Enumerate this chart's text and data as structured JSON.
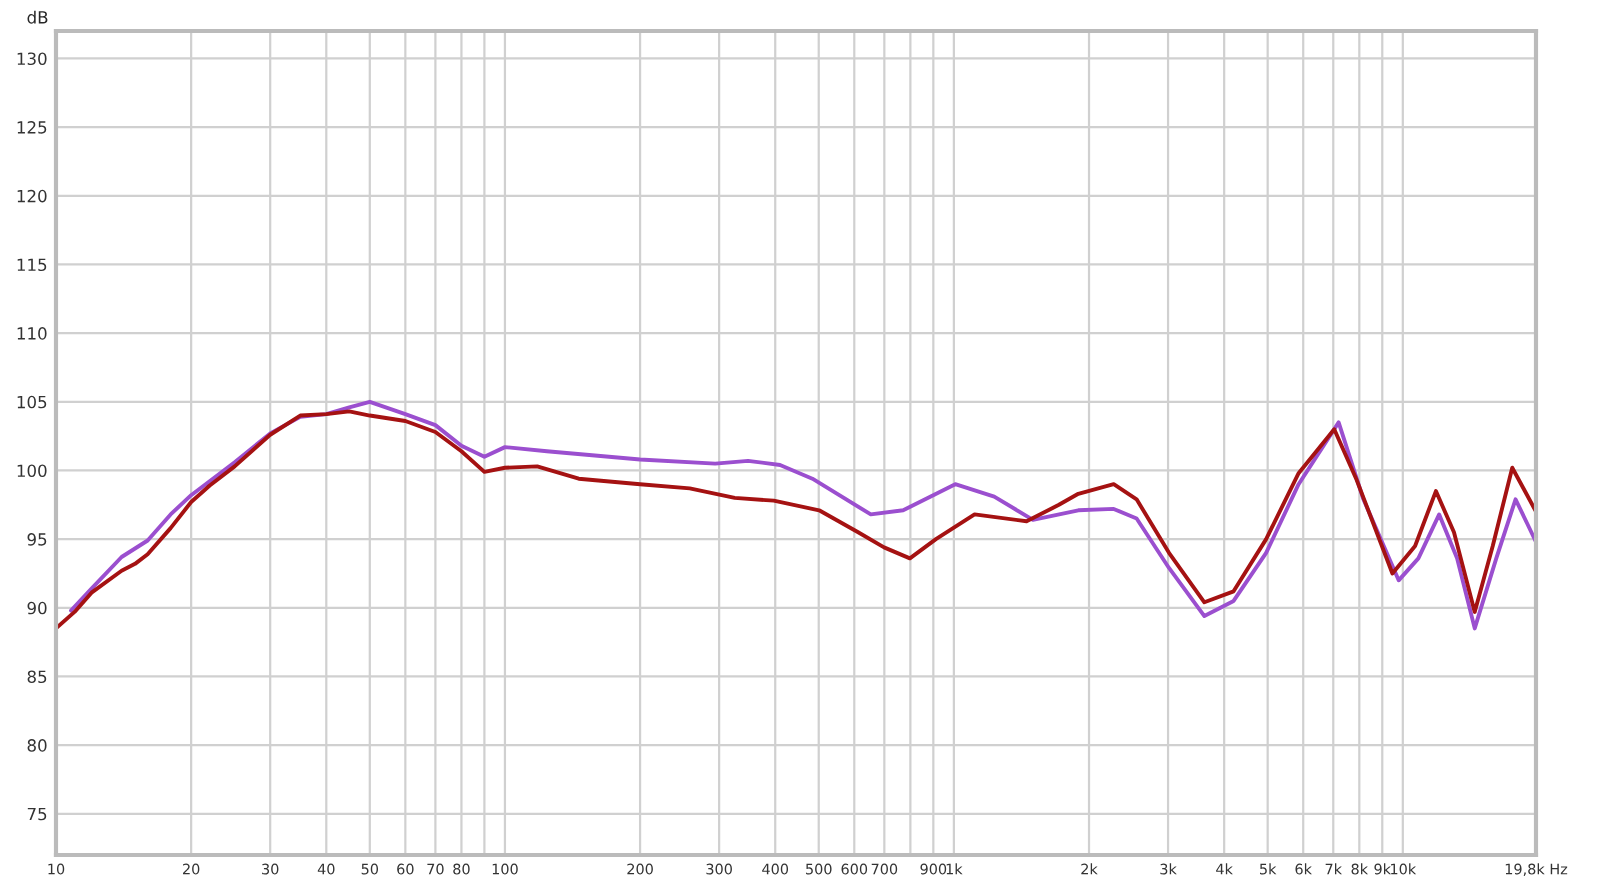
{
  "chart_data": {
    "type": "line",
    "ylabel": "dB",
    "log": "x",
    "grid": true,
    "marker": "none",
    "line_style": "solid",
    "xlim": [
      10,
      19800
    ],
    "ylim": [
      72,
      132
    ],
    "xticks": [
      10,
      20,
      30,
      40,
      50,
      60,
      70,
      80,
      {
        "value": 90,
        "label": null
      },
      100,
      200,
      300,
      400,
      500,
      600,
      700,
      {
        "value": 800,
        "label": null
      },
      900,
      {
        "value": 1000,
        "label": "1k"
      },
      {
        "value": 2000,
        "label": "2k"
      },
      {
        "value": 3000,
        "label": "3k"
      },
      {
        "value": 4000,
        "label": "4k"
      },
      {
        "value": 5000,
        "label": "5k"
      },
      {
        "value": 6000,
        "label": "6k"
      },
      {
        "value": 7000,
        "label": "7k"
      },
      {
        "value": 8000,
        "label": "8k"
      },
      {
        "value": 9000,
        "label": "9k"
      },
      {
        "value": 10000,
        "label": "10k"
      },
      {
        "value": 19800,
        "label": "19,8k Hz"
      }
    ],
    "yticks": [
      75,
      80,
      85,
      90,
      95,
      100,
      105,
      110,
      115,
      120,
      125,
      130
    ],
    "series": [
      {
        "color": "#9b4fcf",
        "x": [
          10.8,
          12,
          14,
          16,
          18,
          20,
          25,
          30,
          35,
          40,
          45,
          50,
          60,
          70,
          80,
          90,
          100,
          124,
          200,
          294,
          348,
          410,
          484,
          653,
          771,
          1007,
          1230,
          1500,
          1893,
          2270,
          2553,
          3014,
          3614,
          4198,
          4961,
          5860,
          7195,
          8170,
          9790,
          10830,
          12050,
          13210,
          14460,
          16150,
          17830,
          19800
        ],
        "values": [
          89.8,
          91.4,
          93.7,
          94.9,
          96.8,
          98.2,
          100.6,
          102.7,
          103.9,
          104.1,
          104.6,
          105.0,
          104.1,
          103.3,
          101.8,
          101.0,
          101.7,
          101.4,
          100.8,
          100.5,
          100.7,
          100.4,
          99.4,
          96.8,
          97.1,
          99.0,
          98.1,
          96.4,
          97.1,
          97.2,
          96.5,
          92.9,
          89.4,
          90.5,
          94.0,
          99.0,
          103.5,
          97.9,
          92.0,
          93.6,
          96.8,
          93.6,
          88.5,
          93.6,
          97.9,
          94.8
        ]
      },
      {
        "color": "#a51212",
        "x": [
          10,
          11,
          12,
          14,
          15,
          16,
          18,
          20,
          22,
          25,
          30,
          35,
          40,
          45,
          50,
          60,
          70,
          80,
          90,
          100,
          118,
          146,
          200,
          258,
          325,
          397,
          501,
          612,
          699,
          798,
          912,
          1112,
          1452,
          1714,
          1893,
          2270,
          2553,
          3014,
          3614,
          4198,
          4961,
          5860,
          7035,
          7894,
          9480,
          10650,
          11850,
          13000,
          14460,
          15860,
          17530,
          19800
        ],
        "values": [
          88.5,
          89.7,
          91.1,
          92.7,
          93.2,
          93.9,
          95.8,
          97.7,
          98.9,
          100.3,
          102.6,
          104.0,
          104.1,
          104.3,
          104.0,
          103.6,
          102.8,
          101.4,
          99.9,
          100.2,
          100.3,
          99.4,
          99.0,
          98.7,
          98.0,
          97.8,
          97.1,
          95.5,
          94.4,
          93.6,
          95.0,
          96.8,
          96.3,
          97.5,
          98.3,
          99.0,
          97.9,
          94.0,
          90.4,
          91.2,
          95.0,
          99.8,
          103.0,
          99.3,
          92.5,
          94.5,
          98.5,
          95.5,
          89.7,
          94.5,
          100.2,
          97.0
        ]
      }
    ]
  }
}
